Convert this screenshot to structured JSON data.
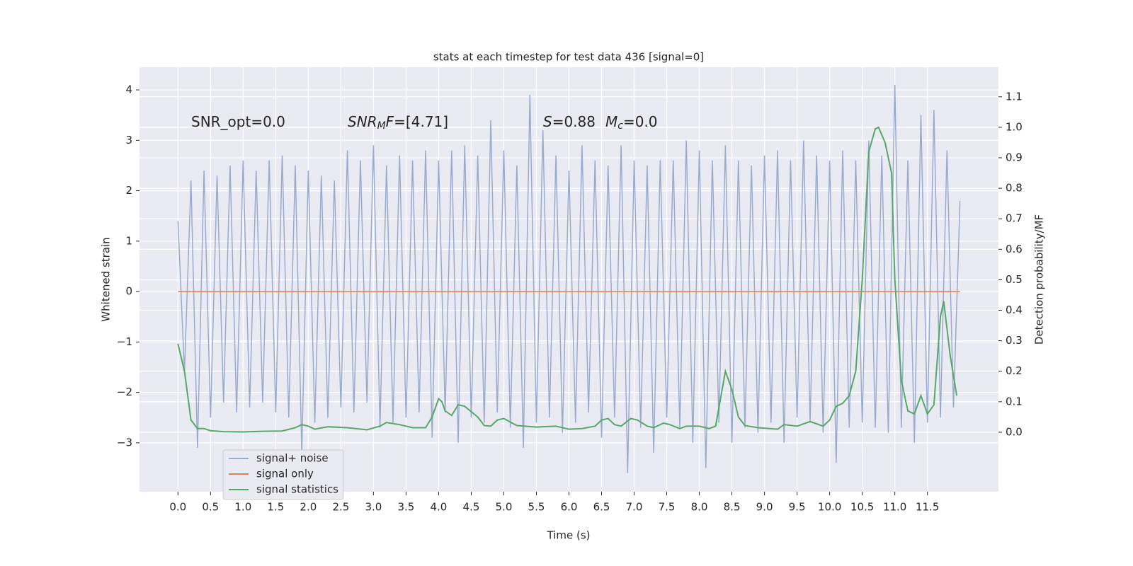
{
  "chart_data": {
    "type": "line",
    "title": "stats at each timestep for test data 436 [signal=0]",
    "xlabel": "Time (s)",
    "ylabel": "Whitened strain",
    "y2label": "Detection probability/MF",
    "annotations": [
      [
        "SNR_opt=0.0"
      ],
      [
        "SNR",
        "M",
        "F",
        "=[4.71]"
      ],
      [
        "S",
        "=0.88",
        "M",
        "c",
        "=0.0"
      ]
    ],
    "xlim": [
      -0.59,
      12.59
    ],
    "ylim": [
      -3.97,
      4.45
    ],
    "y2lim": [
      -0.195,
      1.197
    ],
    "grid": true,
    "legend": "lower left",
    "xticks": [
      {
        "value": 0,
        "label": "0.0"
      },
      0.5,
      {
        "value": 1,
        "label": "1.0"
      },
      1.5,
      {
        "value": 2,
        "label": "2.0"
      },
      2.5,
      {
        "value": 3,
        "label": "3.0"
      },
      3.5,
      {
        "value": 4,
        "label": "4.0"
      },
      4.5,
      {
        "value": 5,
        "label": "5.0"
      },
      5.5,
      {
        "value": 6,
        "label": "6.0"
      },
      6.5,
      {
        "value": 7,
        "label": "7.0"
      },
      7.5,
      {
        "value": 8,
        "label": "8.0"
      },
      8.5,
      {
        "value": 9,
        "label": "9.0"
      },
      9.5,
      {
        "value": 10,
        "label": "10.0"
      },
      10.5,
      {
        "value": 11,
        "label": "11.0"
      },
      11.5
    ],
    "yticks": [
      {
        "value": -3,
        "label": "−3"
      },
      {
        "value": -2,
        "label": "−2"
      },
      {
        "value": -1,
        "label": "−1"
      },
      0,
      1,
      2,
      3,
      4
    ],
    "y2ticks": [
      {
        "value": 0,
        "label": "0.0"
      },
      0.1,
      0.2,
      0.3,
      0.4,
      0.5,
      0.6,
      0.7,
      0.8,
      0.9,
      {
        "value": 1,
        "label": "1.0"
      },
      1.1
    ],
    "series": [
      {
        "name": "signal+ noise",
        "color": "#9aabd0",
        "x": [
          0,
          0.1,
          0.2,
          0.3,
          0.4,
          0.5,
          0.6,
          0.7,
          0.8,
          0.9,
          1,
          1.1,
          1.2,
          1.3,
          1.4,
          1.5,
          1.6,
          1.7,
          1.8,
          1.9,
          2,
          2.1,
          2.2,
          2.3,
          2.4,
          2.5,
          2.6,
          2.7,
          2.8,
          2.9,
          3,
          3.1,
          3.2,
          3.3,
          3.4,
          3.5,
          3.6,
          3.7,
          3.8,
          3.9,
          4,
          4.1,
          4.2,
          4.3,
          4.4,
          4.5,
          4.6,
          4.7,
          4.8,
          4.9,
          5,
          5.1,
          5.2,
          5.3,
          5.4,
          5.5,
          5.6,
          5.7,
          5.8,
          5.9,
          6,
          6.1,
          6.2,
          6.3,
          6.4,
          6.5,
          6.6,
          6.7,
          6.8,
          6.9,
          7,
          7.1,
          7.2,
          7.3,
          7.4,
          7.5,
          7.6,
          7.7,
          7.8,
          7.9,
          8,
          8.1,
          8.2,
          8.3,
          8.4,
          8.5,
          8.6,
          8.7,
          8.8,
          8.9,
          9,
          9.1,
          9.2,
          9.3,
          9.4,
          9.5,
          9.6,
          9.7,
          9.8,
          9.9,
          10,
          10.1,
          10.2,
          10.3,
          10.4,
          10.5,
          10.6,
          10.7,
          10.8,
          10.9,
          11,
          11.1,
          11.2,
          11.3,
          11.4,
          11.5,
          11.6,
          11.7,
          11.8,
          11.9,
          12
        ],
        "values": [
          1.4,
          -1.6,
          2.2,
          -3.1,
          2.4,
          -2.5,
          2.3,
          -2.2,
          2.5,
          -2.4,
          2.6,
          -2.3,
          2.4,
          -2.2,
          2.6,
          -2.4,
          2.7,
          -2.5,
          2.5,
          -3.2,
          2.4,
          -2.6,
          2.3,
          -2.5,
          2.2,
          -2.3,
          2.8,
          -2.4,
          2.6,
          -2.2,
          2.9,
          -2.7,
          2.5,
          -2.6,
          2.7,
          -2.5,
          2.6,
          -2.4,
          2.8,
          -2.9,
          2.6,
          -2.4,
          2.8,
          -3.0,
          2.9,
          -2.5,
          2.7,
          -2.6,
          3.4,
          -2.4,
          2.8,
          -2.7,
          2.5,
          -3.1,
          3.9,
          -2.6,
          3.2,
          -2.5,
          2.7,
          -2.8,
          2.4,
          -2.6,
          2.9,
          -2.4,
          2.6,
          -2.9,
          2.5,
          -2.5,
          2.9,
          -3.6,
          2.6,
          -2.7,
          2.5,
          -3.2,
          2.6,
          -2.5,
          2.6,
          -2.7,
          3.0,
          -3.0,
          2.8,
          -3.5,
          2.6,
          -2.6,
          2.9,
          -3.0,
          2.6,
          -2.7,
          2.5,
          -2.8,
          2.7,
          -2.6,
          2.8,
          -3.0,
          2.6,
          -2.5,
          3.0,
          -2.6,
          2.7,
          -2.8,
          2.6,
          -3.4,
          2.8,
          -2.7,
          2.6,
          -2.6,
          3.0,
          -2.7,
          2.7,
          -2.8,
          4.1,
          -2.7,
          2.6,
          -3.0,
          3.5,
          -2.6,
          3.6,
          -2.5,
          2.8,
          -2.3,
          1.8
        ]
      },
      {
        "name": "signal only",
        "color": "#dd8452",
        "x": [
          0,
          12
        ],
        "values": [
          0,
          0
        ]
      },
      {
        "name": "signal statistics",
        "color": "#55a868",
        "axis": "y2",
        "x": [
          0,
          0.1,
          0.2,
          0.3,
          0.4,
          0.5,
          0.7,
          1.0,
          1.3,
          1.6,
          1.8,
          1.9,
          2.0,
          2.1,
          2.3,
          2.6,
          2.9,
          3.1,
          3.2,
          3.4,
          3.6,
          3.8,
          3.9,
          4.0,
          4.05,
          4.1,
          4.2,
          4.3,
          4.4,
          4.6,
          4.7,
          4.8,
          4.9,
          5.0,
          5.2,
          5.5,
          5.8,
          6.0,
          6.2,
          6.4,
          6.5,
          6.6,
          6.7,
          6.8,
          6.95,
          7.05,
          7.2,
          7.3,
          7.45,
          7.55,
          7.7,
          7.8,
          8.0,
          8.15,
          8.25,
          8.3,
          8.4,
          8.5,
          8.6,
          8.7,
          8.9,
          9.2,
          9.3,
          9.5,
          9.7,
          9.9,
          10.0,
          10.1,
          10.2,
          10.3,
          10.4,
          10.5,
          10.6,
          10.7,
          10.75,
          10.85,
          10.95,
          11.0,
          11.1,
          11.2,
          11.3,
          11.4,
          11.5,
          11.6,
          11.7,
          11.75,
          11.85,
          11.95
        ],
        "values": [
          0.29,
          0.2,
          0.04,
          0.012,
          0.012,
          0.005,
          0.002,
          0.001,
          0.003,
          0.004,
          0.015,
          0.025,
          0.02,
          0.01,
          0.018,
          0.015,
          0.008,
          0.02,
          0.032,
          0.025,
          0.015,
          0.015,
          0.05,
          0.11,
          0.1,
          0.07,
          0.055,
          0.09,
          0.085,
          0.05,
          0.022,
          0.02,
          0.04,
          0.045,
          0.022,
          0.017,
          0.02,
          0.01,
          0.012,
          0.02,
          0.04,
          0.045,
          0.025,
          0.02,
          0.045,
          0.04,
          0.02,
          0.015,
          0.03,
          0.025,
          0.012,
          0.02,
          0.02,
          0.012,
          0.02,
          0.08,
          0.2,
          0.14,
          0.05,
          0.022,
          0.015,
          0.01,
          0.025,
          0.02,
          0.035,
          0.02,
          0.04,
          0.085,
          0.095,
          0.12,
          0.2,
          0.5,
          0.92,
          0.995,
          1.0,
          0.95,
          0.85,
          0.5,
          0.17,
          0.07,
          0.06,
          0.12,
          0.06,
          0.09,
          0.38,
          0.43,
          0.25,
          0.12
        ]
      }
    ]
  }
}
